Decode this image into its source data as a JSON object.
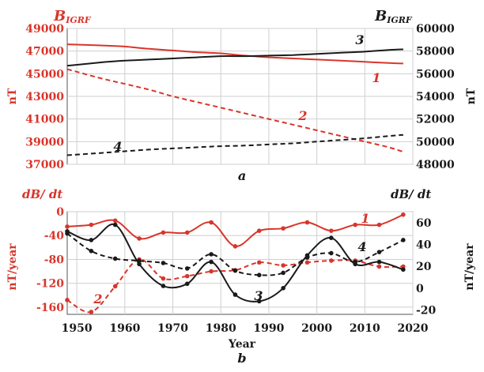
{
  "colors": {
    "red": "#d9352b",
    "black": "#1a1a1a",
    "grid": "#cfcfcf"
  },
  "chart_data": [
    {
      "panel": "a",
      "type": "line",
      "left_axis_label": "B_IGRF",
      "left_axis_unit": "nT",
      "right_axis_label": "B_IGRF",
      "right_axis_unit": "nT",
      "left_ticks": [
        "37000",
        "39000",
        "41000",
        "43000",
        "45000",
        "47000",
        "49000"
      ],
      "right_ticks": [
        "48000",
        "50000",
        "52000",
        "54000",
        "56000",
        "58000",
        "60000"
      ],
      "left_ylim": [
        37000,
        49000
      ],
      "right_ylim": [
        48000,
        60000
      ],
      "xlim": [
        1948,
        2020
      ],
      "series": [
        {
          "label": "1",
          "axis": "left",
          "color": "#d9352b",
          "style": "solid",
          "x": [
            1948,
            1955,
            1960,
            1965,
            1970,
            1975,
            1980,
            1985,
            1990,
            1995,
            2000,
            2005,
            2010,
            2015,
            2018
          ],
          "y": [
            47600,
            47500,
            47400,
            47200,
            47050,
            46900,
            46800,
            46600,
            46450,
            46350,
            46250,
            46150,
            46050,
            45950,
            45900
          ]
        },
        {
          "label": "2",
          "axis": "left",
          "color": "#d9352b",
          "style": "dashed",
          "x": [
            1948,
            1955,
            1960,
            1965,
            1970,
            1975,
            1980,
            1985,
            1990,
            1995,
            2000,
            2005,
            2010,
            2015,
            2018
          ],
          "y": [
            45400,
            44600,
            44100,
            43600,
            43000,
            42500,
            42000,
            41500,
            41000,
            40500,
            40000,
            39500,
            39000,
            38500,
            38100
          ]
        },
        {
          "label": "3",
          "axis": "right",
          "color": "#1a1a1a",
          "style": "solid",
          "x": [
            1948,
            1955,
            1960,
            1965,
            1970,
            1975,
            1980,
            1985,
            1990,
            1995,
            2000,
            2005,
            2010,
            2015,
            2018
          ],
          "y": [
            56700,
            57000,
            57150,
            57250,
            57350,
            57450,
            57550,
            57550,
            57600,
            57650,
            57750,
            57850,
            57950,
            58100,
            58150
          ]
        },
        {
          "label": "4",
          "axis": "right",
          "color": "#1a1a1a",
          "style": "dashed",
          "x": [
            1948,
            1955,
            1960,
            1965,
            1970,
            1975,
            1980,
            1985,
            1990,
            1995,
            2000,
            2005,
            2010,
            2015,
            2018
          ],
          "y": [
            48800,
            49000,
            49150,
            49300,
            49400,
            49500,
            49600,
            49650,
            49750,
            49850,
            50000,
            50150,
            50300,
            50500,
            50600
          ]
        }
      ],
      "panel_label": "a"
    },
    {
      "panel": "b",
      "type": "line",
      "left_axis_label": "dB/ dt",
      "left_axis_unit": "nT/year",
      "right_axis_label": "dB/ dt",
      "right_axis_unit": "nT/year",
      "xlabel": "Year",
      "x_ticks": [
        "1950",
        "1960",
        "1970",
        "1980",
        "1990",
        "2000",
        "2010",
        "2020"
      ],
      "left_ticks": [
        "-160",
        "-120",
        "-80",
        "-40",
        "0"
      ],
      "right_ticks": [
        "-20",
        "0",
        "20",
        "40",
        "60"
      ],
      "left_ylim": [
        -172,
        0
      ],
      "right_ylim": [
        -24,
        70
      ],
      "xlim": [
        1948,
        2020
      ],
      "series": [
        {
          "label": "1",
          "axis": "left",
          "color": "#d9352b",
          "style": "solid",
          "markers": true,
          "x": [
            1948,
            1953,
            1958,
            1963,
            1968,
            1973,
            1978,
            1983,
            1988,
            1993,
            1998,
            2003,
            2008,
            2013,
            2018
          ],
          "y": [
            -25,
            -22,
            -15,
            -45,
            -35,
            -35,
            -18,
            -58,
            -32,
            -28,
            -18,
            -32,
            -22,
            -22,
            -5
          ]
        },
        {
          "label": "2",
          "axis": "left",
          "color": "#d9352b",
          "style": "dashed",
          "markers": true,
          "x": [
            1948,
            1953,
            1958,
            1963,
            1968,
            1973,
            1978,
            1983,
            1988,
            1993,
            1998,
            2003,
            2008,
            2013,
            2018
          ],
          "y": [
            -148,
            -168,
            -125,
            -80,
            -112,
            -108,
            -100,
            -98,
            -85,
            -90,
            -85,
            -82,
            -82,
            -92,
            -92
          ]
        },
        {
          "label": "3",
          "axis": "right",
          "color": "#1a1a1a",
          "style": "solid",
          "markers": true,
          "x": [
            1948,
            1953,
            1958,
            1963,
            1968,
            1973,
            1978,
            1983,
            1988,
            1993,
            1998,
            2003,
            2008,
            2013,
            2018
          ],
          "y": [
            52,
            44,
            58,
            22,
            2,
            4,
            24,
            -6,
            -12,
            0,
            30,
            46,
            22,
            24,
            17
          ]
        },
        {
          "label": "4",
          "axis": "right",
          "color": "#1a1a1a",
          "style": "dashed",
          "markers": true,
          "x": [
            1948,
            1953,
            1958,
            1963,
            1968,
            1973,
            1978,
            1983,
            1988,
            1993,
            1998,
            2003,
            2008,
            2013,
            2018
          ],
          "y": [
            50,
            34,
            27,
            25,
            23,
            18,
            31,
            16,
            12,
            14,
            28,
            32,
            24,
            33,
            44
          ]
        }
      ],
      "panel_label": "b"
    }
  ]
}
